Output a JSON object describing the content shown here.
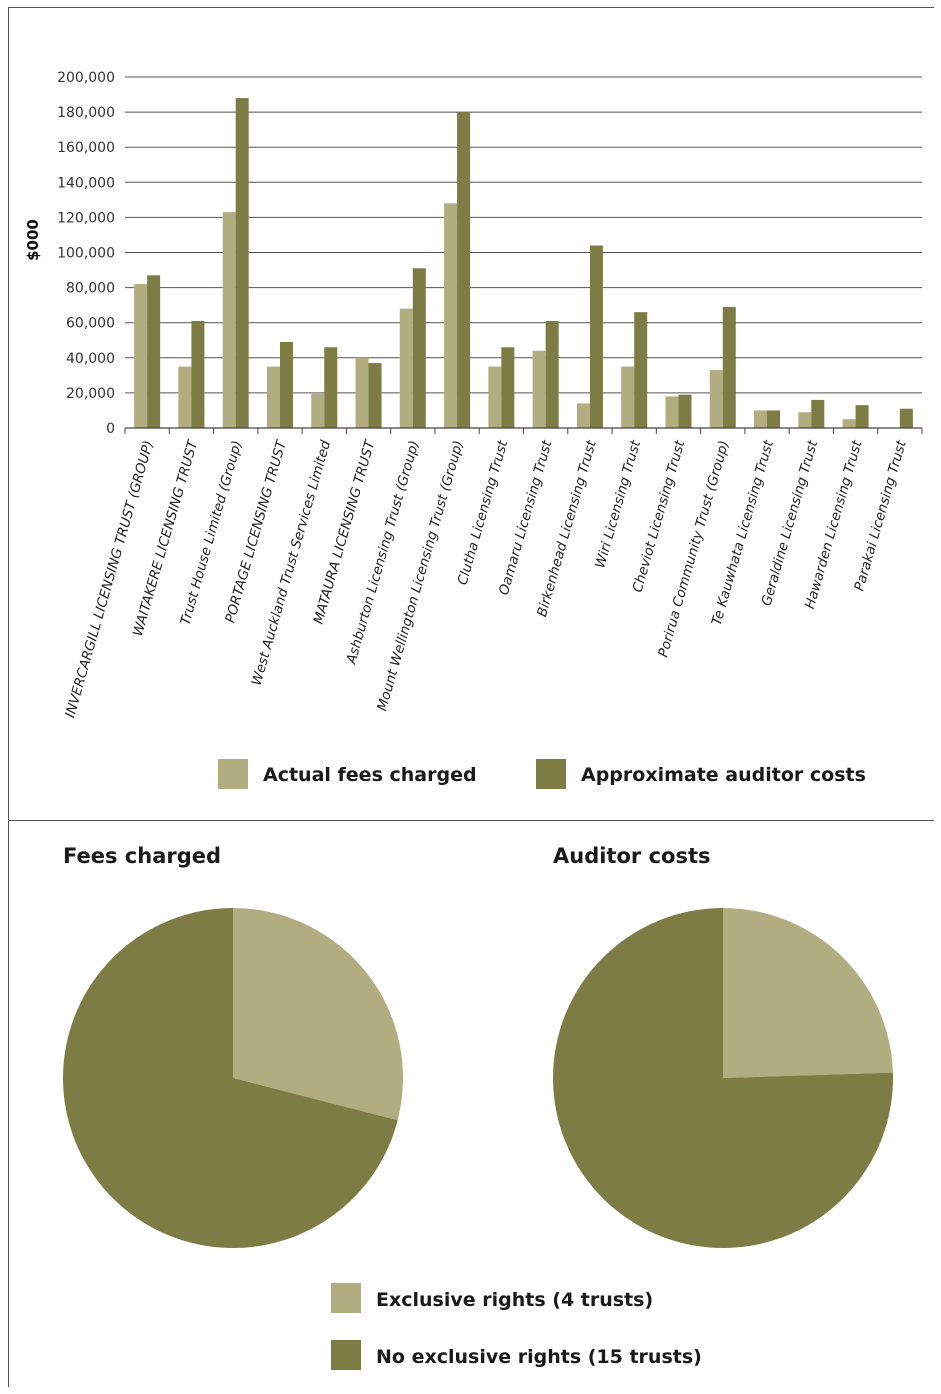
{
  "colors": {
    "actual": "#b1ad80",
    "auditor": "#7e7c45",
    "exclusive": "#b1ad80",
    "no_exclusive": "#7e7c45"
  },
  "bar_legend": {
    "actual": "Actual fees charged",
    "auditor": "Approximate auditor costs"
  },
  "pie_legend": {
    "exclusive": "Exclusive rights (4 trusts)",
    "no_exclusive": "No exclusive rights (15 trusts)"
  },
  "pies": {
    "fees_title": "Fees charged",
    "auditor_title": "Auditor costs"
  },
  "chart_data": [
    {
      "type": "bar",
      "ylabel": "$000",
      "ylim": [
        0,
        200000
      ],
      "yticks": [
        0,
        20000,
        40000,
        60000,
        80000,
        100000,
        120000,
        140000,
        160000,
        180000,
        200000
      ],
      "ytick_labels": [
        "0",
        "20,000",
        "40,000",
        "60,000",
        "80,000",
        "100,000",
        "120,000",
        "140,000",
        "160,000",
        "180,000",
        "200,000"
      ],
      "grid": true,
      "legend_position": "bottom",
      "categories": [
        "INVERCARGILL LICENSING TRUST (GROUP)",
        "WAITAKERE LICENSING TRUST",
        "Trust House Limited (Group)",
        "PORTAGE LICENSING TRUST",
        "West Auckland Trust Services Limited",
        "MATAURA LICENSING TRUST",
        "Ashburton Licensing Trust (Group)",
        "Mount Wellington Licensing Trust (Group)",
        "Clutha Licensing Trust",
        "Oamaru Licensing Trust",
        "Birkenhead Licensing Trust",
        "Wiri Licensing Trust",
        "Cheviot Licensing Trust",
        "Porirua Community Trust  (Group)",
        "Te Kauwhata Licensing Trust",
        "Geraldine Licensing Trust",
        "Hawarden Licensing Trust",
        "Parakai Licensing Trust"
      ],
      "series": [
        {
          "name": "Actual fees charged",
          "values": [
            82000,
            35000,
            123000,
            35000,
            20000,
            40000,
            68000,
            128000,
            35000,
            44000,
            14000,
            35000,
            18000,
            33000,
            10000,
            9000,
            5000,
            0
          ]
        },
        {
          "name": "Approximate auditor costs",
          "values": [
            87000,
            61000,
            188000,
            49000,
            46000,
            37000,
            91000,
            180000,
            46000,
            61000,
            104000,
            66000,
            19000,
            69000,
            10000,
            16000,
            13000,
            11000
          ]
        }
      ]
    },
    {
      "type": "pie",
      "title": "Fees charged",
      "labels": [
        "Exclusive rights (4 trusts)",
        "No exclusive rights (15 trusts)"
      ],
      "values": [
        29,
        71
      ]
    },
    {
      "type": "pie",
      "title": "Auditor costs",
      "labels": [
        "Exclusive rights (4 trusts)",
        "No exclusive rights (15 trusts)"
      ],
      "values": [
        24.5,
        75.5
      ]
    }
  ]
}
